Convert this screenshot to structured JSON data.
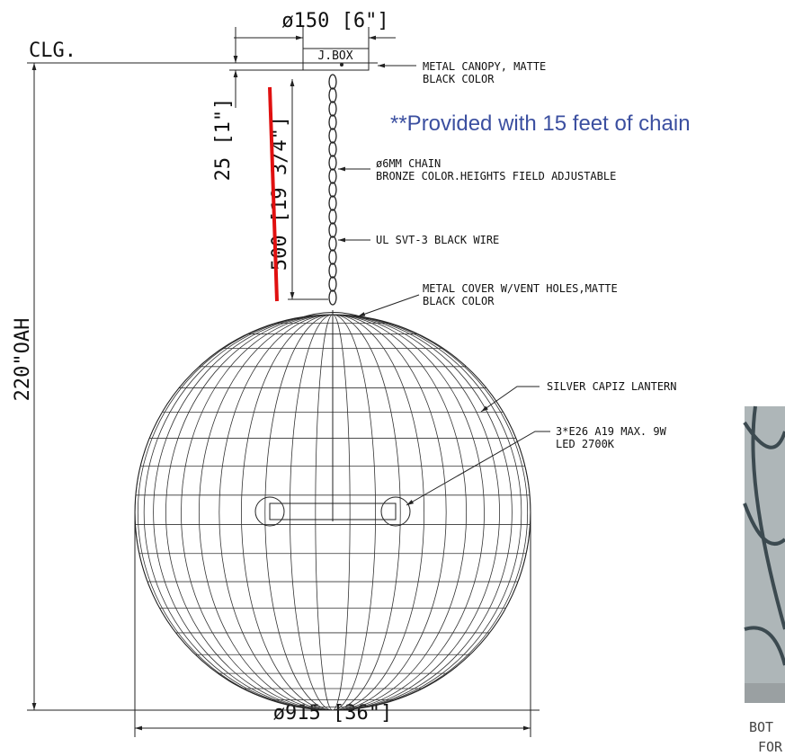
{
  "dimensions": {
    "canopy_diameter": "ø150 [6\"]",
    "junction_box": "J.BOX",
    "ceiling": "CLG.",
    "canopy_offset": "25 [1\"]",
    "chain_length": "500 [19 3/4\"]",
    "overall_height": "220\"OAH",
    "diameter": "ø915 [36\"]"
  },
  "note": "**Provided with 15 feet of chain",
  "callouts": [
    {
      "lines": [
        "METAL CANOPY, MATTE",
        "BLACK COLOR"
      ]
    },
    {
      "lines": [
        "ø6MM CHAIN",
        "BRONZE COLOR.HEIGHTS FIELD ADJUSTABLE"
      ]
    },
    {
      "lines": [
        "UL SVT-3 BLACK WIRE"
      ]
    },
    {
      "lines": [
        "METAL COVER W/VENT HOLES,MATTE",
        "BLACK COLOR"
      ]
    },
    {
      "lines": [
        "SILVER CAPIZ LANTERN"
      ]
    },
    {
      "lines": [
        "3*E26 A19 MAX. 9W",
        "LED 2700K"
      ]
    }
  ],
  "photo": {
    "caption": [
      "BOT",
      "FOR"
    ]
  }
}
